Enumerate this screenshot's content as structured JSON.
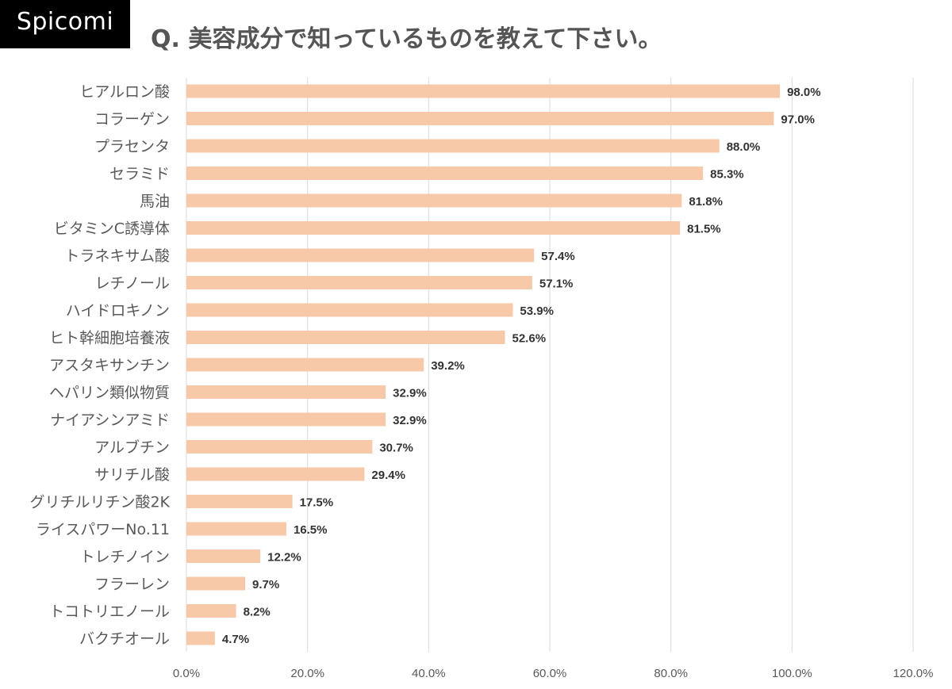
{
  "brand": "Spicomi",
  "chart_data": {
    "type": "bar",
    "orientation": "horizontal",
    "title": "Q. 美容成分で知っているものを教えて下さい。",
    "categories": [
      "ヒアルロン酸",
      "コラーゲン",
      "プラセンタ",
      "セラミド",
      "馬油",
      "ビタミンC誘導体",
      "トラネキサム酸",
      "レチノール",
      "ハイドロキノン",
      "ヒト幹細胞培養液",
      "アスタキサンチン",
      "ヘパリン類似物質",
      "ナイアシンアミド",
      "アルブチン",
      "サリチル酸",
      "グリチルリチン酸2K",
      "ライスパワーNo.11",
      "トレチノイン",
      "フラーレン",
      "トコトリエノール",
      "バクチオール"
    ],
    "values": [
      98.0,
      97.0,
      88.0,
      85.3,
      81.8,
      81.5,
      57.4,
      57.1,
      53.9,
      52.6,
      39.2,
      32.9,
      32.9,
      30.7,
      29.4,
      17.5,
      16.5,
      12.2,
      9.7,
      8.2,
      4.7
    ],
    "value_labels": [
      "98.0%",
      "97.0%",
      "88.0%",
      "85.3%",
      "81.8%",
      "81.5%",
      "57.4%",
      "57.1%",
      "53.9%",
      "52.6%",
      "39.2%",
      "32.9%",
      "32.9%",
      "30.7%",
      "29.4%",
      "17.5%",
      "16.5%",
      "12.2%",
      "9.7%",
      "8.2%",
      "4.7%"
    ],
    "xlim": [
      0,
      120
    ],
    "x_ticks": [
      "0.0%",
      "20.0%",
      "40.0%",
      "60.0%",
      "80.0%",
      "100.0%",
      "120.0%"
    ],
    "grid": "vertical",
    "xlabel": "",
    "ylabel": "",
    "colors": {
      "bar": "#F8C9A8",
      "grid": "#D9D9D9",
      "label": "#595959",
      "value_label": "#333333"
    }
  }
}
